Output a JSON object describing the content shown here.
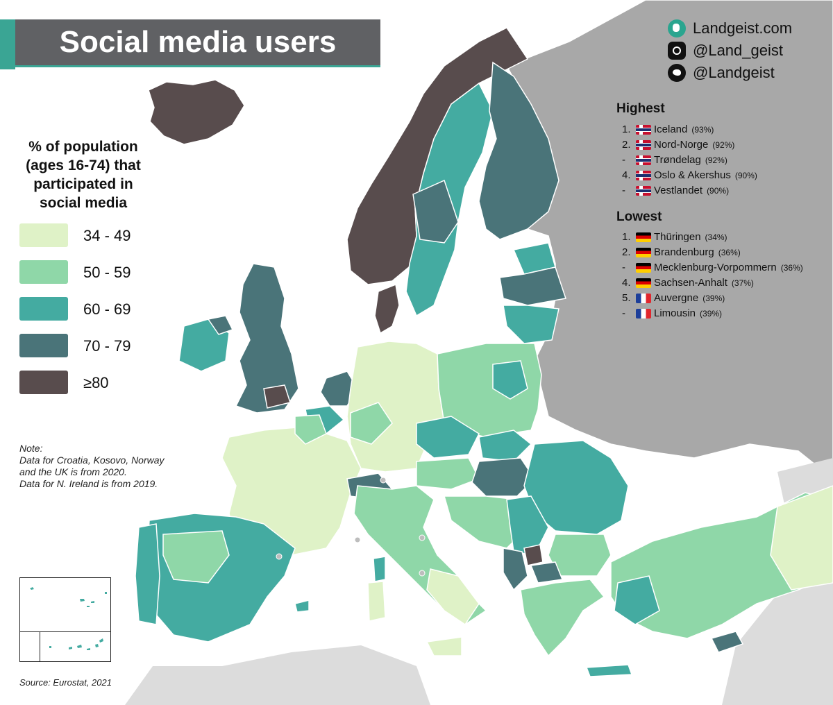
{
  "title": "Social media users",
  "social": {
    "website": "Landgeist.com",
    "instagram": "@Land_geist",
    "twitter": "@Landgeist"
  },
  "legend": {
    "title_lines": [
      "% of population",
      "(ages 16-74) that",
      "participated in",
      "social media"
    ],
    "classes": [
      {
        "label": "34 - 49",
        "color": "#dff2c7"
      },
      {
        "label": "50 - 59",
        "color": "#8fd7a8"
      },
      {
        "label": "60 - 69",
        "color": "#44aba1"
      },
      {
        "label": "70 - 79",
        "color": "#4a7479"
      },
      {
        "label": "≥80",
        "color": "#584c4d"
      }
    ]
  },
  "note_lines": [
    "Note:",
    "Data for Croatia, Kosovo, Norway",
    "and the UK is from 2020.",
    "Data for N. Ireland is from 2019."
  ],
  "source": "Source: Eurostat, 2021",
  "highest": {
    "heading": "Highest",
    "rows": [
      {
        "rank": "1.",
        "flag": "no",
        "name": "Iceland",
        "value": "(93%)"
      },
      {
        "rank": "2.",
        "flag": "no",
        "name": "Nord-Norge",
        "value": "(92%)"
      },
      {
        "rank": "-",
        "flag": "no",
        "name": "Trøndelag",
        "value": "(92%)"
      },
      {
        "rank": "4.",
        "flag": "no",
        "name": "Oslo & Akershus",
        "value": "(90%)"
      },
      {
        "rank": "-",
        "flag": "no",
        "name": "Vestlandet",
        "value": "(90%)"
      }
    ]
  },
  "lowest": {
    "heading": "Lowest",
    "rows": [
      {
        "rank": "1.",
        "flag": "de",
        "name": "Thüringen",
        "value": "(34%)"
      },
      {
        "rank": "2.",
        "flag": "de",
        "name": "Brandenburg",
        "value": "(36%)"
      },
      {
        "rank": "-",
        "flag": "de",
        "name": "Mecklenburg-Vorpommern",
        "value": "(36%)"
      },
      {
        "rank": "4.",
        "flag": "de",
        "name": "Sachsen-Anhalt",
        "value": "(37%)"
      },
      {
        "rank": "5.",
        "flag": "fr",
        "name": "Auvergne",
        "value": "(39%)"
      },
      {
        "rank": "-",
        "flag": "fr",
        "name": "Limousin",
        "value": "(39%)"
      }
    ]
  },
  "colors": {
    "sea": "#ffffff",
    "non_eu_land": "#a8a8a8",
    "far_land": "#dcdcdc",
    "accent": "#3aa594",
    "title_bg": "#606164"
  }
}
